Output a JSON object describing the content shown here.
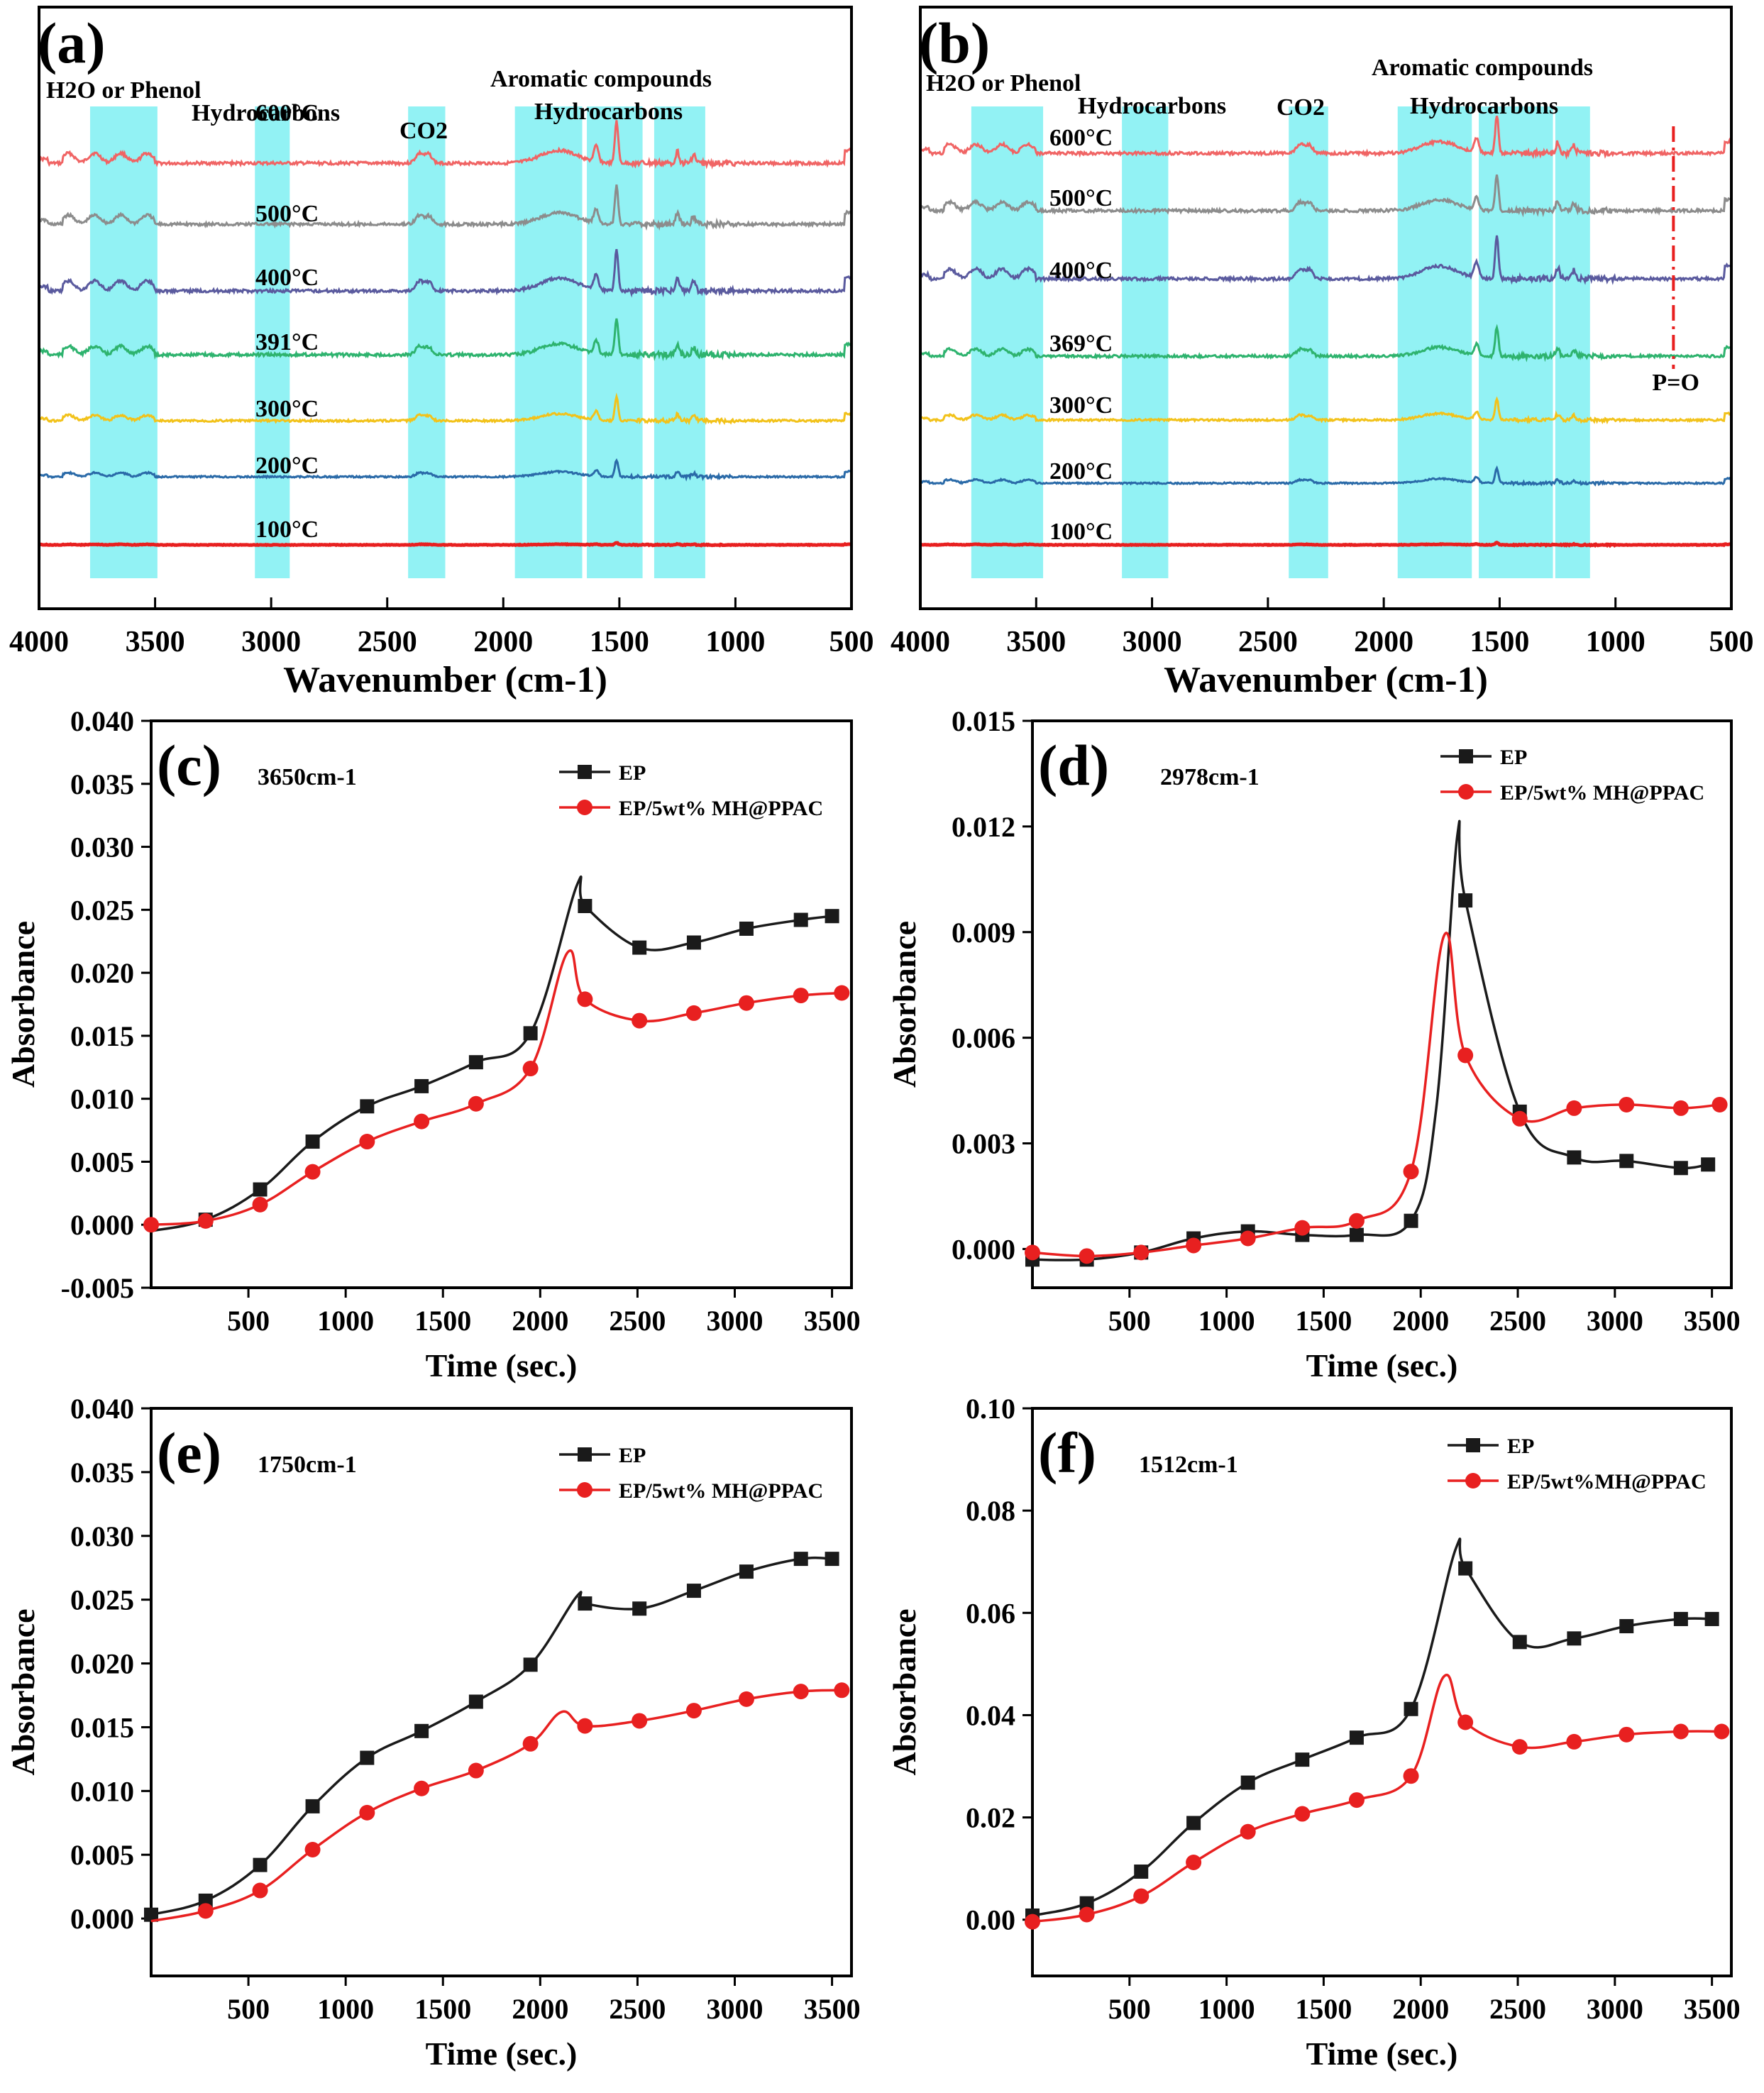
{
  "chart_data": [
    {
      "panel": "(a)",
      "type": "line",
      "subtype": "stacked-ftir-spectra",
      "xlabel": "Wavenumber (cm-1)",
      "xlim": [
        4000,
        500
      ],
      "xticks": [
        4000,
        3500,
        3000,
        2500,
        2000,
        1500,
        1000,
        500
      ],
      "bands": [
        {
          "label": "H2O or Phenol",
          "from": 3780,
          "to": 3490
        },
        {
          "label": "Hydrocarbons",
          "from": 3070,
          "to": 2920
        },
        {
          "label": "CO2",
          "from": 2410,
          "to": 2250
        },
        {
          "label": "Aromatic compounds",
          "from": 1950,
          "to": 1660
        },
        {
          "label": "Hydrocarbons",
          "from": 1640,
          "to": 1400
        },
        {
          "label": "",
          "from": 1350,
          "to": 1130
        }
      ],
      "band_texts": {
        "h2o": "H2O or Phenol",
        "hydro1": "Hydrocarbons",
        "co2": "CO2",
        "arom": "Aromatic compounds",
        "hydro2": "Hydrocarbons"
      },
      "series": [
        {
          "name": "600°C",
          "color": "#f06464",
          "peak": 1.0
        },
        {
          "name": "500°C",
          "color": "#8c8c8c",
          "peak": 0.9
        },
        {
          "name": "400°C",
          "color": "#5a5a9e",
          "peak": 1.0
        },
        {
          "name": "391°C",
          "color": "#2eb36e",
          "peak": 0.85
        },
        {
          "name": "300°C",
          "color": "#f2c21a",
          "peak": 0.55
        },
        {
          "name": "200°C",
          "color": "#2a6aa8",
          "peak": 0.4
        },
        {
          "name": "100°C",
          "color": "#e82020",
          "peak": 0.05
        }
      ]
    },
    {
      "panel": "(b)",
      "type": "line",
      "subtype": "stacked-ftir-spectra",
      "xlabel": "Wavenumber (cm-1)",
      "xlim": [
        4000,
        500
      ],
      "xticks": [
        4000,
        3500,
        3000,
        2500,
        2000,
        1500,
        1000,
        500
      ],
      "bands": [
        {
          "label": "H2O or Phenol",
          "from": 3780,
          "to": 3470
        },
        {
          "label": "Hydrocarbons",
          "from": 3130,
          "to": 2930
        },
        {
          "label": "CO2",
          "from": 2410,
          "to": 2240
        },
        {
          "label": "Aromatic compounds",
          "from": 1940,
          "to": 1620
        },
        {
          "label": "Hydrocarbons",
          "from": 1590,
          "to": 1270
        },
        {
          "label": "",
          "from": 1260,
          "to": 1110
        }
      ],
      "band_texts": {
        "h2o": "H2O or Phenol",
        "hydro1": "Hydrocarbons",
        "co2": "CO2",
        "arom": "Aromatic compounds",
        "hydro2": "Hydrocarbons"
      },
      "po_line": {
        "label": "P=O",
        "x": 750
      },
      "series": [
        {
          "name": "600°C",
          "color": "#f06464",
          "peak": 0.9
        },
        {
          "name": "500°C",
          "color": "#8c8c8c",
          "peak": 0.85
        },
        {
          "name": "400°C",
          "color": "#5a5a9e",
          "peak": 1.0
        },
        {
          "name": "369°C",
          "color": "#2eb36e",
          "peak": 0.7
        },
        {
          "name": "300°C",
          "color": "#f2c21a",
          "peak": 0.5
        },
        {
          "name": "200°C",
          "color": "#2a6aa8",
          "peak": 0.35
        },
        {
          "name": "100°C",
          "color": "#e82020",
          "peak": 0.05
        }
      ]
    },
    {
      "panel": "(c)",
      "type": "line",
      "annotation": "3650cm-1",
      "xlabel": "Time (sec.)",
      "ylabel": "Absorbance",
      "xlim": [
        0,
        3600
      ],
      "ylim": [
        -0.005,
        0.04
      ],
      "xticks": [
        500,
        1000,
        1500,
        2000,
        2500,
        3000,
        3500
      ],
      "yticks": [
        "-0.005",
        "0.000",
        "0.005",
        "0.010",
        "0.015",
        "0.020",
        "0.025",
        "0.030",
        "0.035",
        "0.040"
      ],
      "series": [
        {
          "name": "EP",
          "color": "#1a1a1a",
          "marker": "square",
          "x": [
            0,
            280,
            560,
            830,
            1110,
            1390,
            1670,
            1950,
            2190,
            2230,
            2510,
            2790,
            3060,
            3340,
            3500
          ],
          "y": [
            -0.0005,
            0.0004,
            0.0028,
            0.0066,
            0.0094,
            0.011,
            0.0129,
            0.0152,
            0.027,
            0.0253,
            0.022,
            0.0224,
            0.0235,
            0.0242,
            0.0245
          ],
          "markers": [
            1,
            2,
            3,
            4,
            5,
            6,
            7,
            9,
            10,
            11,
            12,
            13,
            14
          ]
        },
        {
          "name": "EP/5wt% MH@PPAC",
          "color": "#e82020",
          "marker": "circle",
          "x": [
            0,
            280,
            560,
            830,
            1110,
            1390,
            1670,
            1950,
            2140,
            2230,
            2510,
            2790,
            3060,
            3340,
            3550
          ],
          "y": [
            0.0,
            0.0003,
            0.0016,
            0.0042,
            0.0066,
            0.0082,
            0.0096,
            0.0124,
            0.0216,
            0.0179,
            0.0162,
            0.0168,
            0.0176,
            0.0182,
            0.0184
          ],
          "markers": [
            0,
            1,
            2,
            3,
            4,
            5,
            6,
            7,
            9,
            10,
            11,
            12,
            13,
            14
          ]
        }
      ]
    },
    {
      "panel": "(d)",
      "type": "line",
      "annotation": "2978cm-1",
      "xlabel": "Time (sec.)",
      "ylabel": "Absorbance",
      "xlim": [
        0,
        3600
      ],
      "ylim": [
        -0.0011,
        0.015
      ],
      "xticks": [
        500,
        1000,
        1500,
        2000,
        2500,
        3000,
        3500
      ],
      "yticks": [
        "0.000",
        "0.003",
        "0.006",
        "0.009",
        "0.012",
        "0.015"
      ],
      "series": [
        {
          "name": "EP",
          "color": "#1a1a1a",
          "marker": "square",
          "x": [
            0,
            280,
            560,
            830,
            1110,
            1390,
            1670,
            1950,
            2080,
            2190,
            2230,
            2510,
            2790,
            3060,
            3340,
            3480
          ],
          "y": [
            -0.0003,
            -0.0003,
            -0.0001,
            0.0003,
            0.0005,
            0.0004,
            0.0004,
            0.0008,
            0.004,
            0.0118,
            0.0099,
            0.0039,
            0.0026,
            0.0025,
            0.0023,
            0.0024
          ],
          "markers": [
            0,
            1,
            2,
            3,
            4,
            5,
            6,
            7,
            10,
            11,
            12,
            13,
            14,
            15
          ]
        },
        {
          "name": "EP/5wt% MH@PPAC",
          "color": "#e82020",
          "marker": "circle",
          "x": [
            0,
            280,
            560,
            830,
            1110,
            1390,
            1670,
            1950,
            2120,
            2230,
            2510,
            2790,
            3060,
            3340,
            3540
          ],
          "y": [
            -0.0001,
            -0.0002,
            -0.0001,
            0.0001,
            0.0003,
            0.0006,
            0.0008,
            0.0022,
            0.0089,
            0.0055,
            0.0037,
            0.004,
            0.0041,
            0.004,
            0.0041
          ],
          "markers": [
            0,
            1,
            2,
            3,
            4,
            5,
            6,
            7,
            9,
            10,
            11,
            12,
            13,
            14
          ]
        }
      ]
    },
    {
      "panel": "(e)",
      "type": "line",
      "annotation": "1750cm-1",
      "xlabel": "Time (sec.)",
      "ylabel": "Absorbance",
      "xlim": [
        0,
        3600
      ],
      "ylim": [
        -0.0045,
        0.04
      ],
      "xticks": [
        500,
        1000,
        1500,
        2000,
        2500,
        3000,
        3500
      ],
      "yticks": [
        "0.000",
        "0.005",
        "0.010",
        "0.015",
        "0.020",
        "0.025",
        "0.030",
        "0.035",
        "0.040"
      ],
      "series": [
        {
          "name": "EP",
          "color": "#1a1a1a",
          "marker": "square",
          "x": [
            0,
            280,
            560,
            830,
            1110,
            1390,
            1670,
            1950,
            2190,
            2230,
            2510,
            2790,
            3060,
            3340,
            3500
          ],
          "y": [
            0.0003,
            0.0014,
            0.0042,
            0.0088,
            0.0126,
            0.0147,
            0.017,
            0.0199,
            0.0253,
            0.0247,
            0.0243,
            0.0257,
            0.0272,
            0.0282,
            0.0282
          ],
          "markers": [
            0,
            1,
            2,
            3,
            4,
            5,
            6,
            7,
            9,
            10,
            11,
            12,
            13,
            14
          ]
        },
        {
          "name": "EP/5wt% MH@PPAC",
          "color": "#e82020",
          "marker": "circle",
          "x": [
            0,
            280,
            560,
            830,
            1110,
            1390,
            1670,
            1950,
            2110,
            2230,
            2510,
            2790,
            3060,
            3340,
            3550
          ],
          "y": [
            -0.0002,
            0.0006,
            0.0022,
            0.0054,
            0.0083,
            0.0102,
            0.0116,
            0.0137,
            0.0162,
            0.0151,
            0.0155,
            0.0163,
            0.0172,
            0.0178,
            0.0179
          ],
          "markers": [
            1,
            2,
            3,
            4,
            5,
            6,
            7,
            9,
            10,
            11,
            12,
            13,
            14
          ]
        }
      ]
    },
    {
      "panel": "(f)",
      "type": "line",
      "annotation": "1512cm-1",
      "xlabel": "Time (sec.)",
      "ylabel": "Absorbance",
      "xlim": [
        0,
        3600
      ],
      "ylim": [
        -0.011,
        0.1
      ],
      "xticks": [
        500,
        1000,
        1500,
        2000,
        2500,
        3000,
        3500
      ],
      "yticks": [
        "0.00",
        "0.02",
        "0.04",
        "0.06",
        "0.08",
        "0.10"
      ],
      "series": [
        {
          "name": "EP",
          "color": "#1a1a1a",
          "marker": "square",
          "x": [
            0,
            280,
            560,
            830,
            1110,
            1390,
            1670,
            1950,
            2180,
            2230,
            2510,
            2790,
            3060,
            3340,
            3500
          ],
          "y": [
            0.0008,
            0.0032,
            0.0094,
            0.0189,
            0.0268,
            0.0313,
            0.0356,
            0.0412,
            0.0725,
            0.0687,
            0.0543,
            0.055,
            0.0574,
            0.0588,
            0.0588
          ],
          "markers": [
            0,
            1,
            2,
            3,
            4,
            5,
            6,
            7,
            9,
            10,
            11,
            12,
            13,
            14
          ]
        },
        {
          "name": "EP/5wt%MH@PPAC",
          "color": "#e82020",
          "marker": "circle",
          "x": [
            0,
            280,
            560,
            830,
            1110,
            1390,
            1670,
            1950,
            2120,
            2230,
            2510,
            2790,
            3060,
            3340,
            3550
          ],
          "y": [
            -0.0004,
            0.001,
            0.0046,
            0.0112,
            0.0172,
            0.0207,
            0.0234,
            0.0281,
            0.0476,
            0.0386,
            0.0338,
            0.0348,
            0.0362,
            0.0368,
            0.0368
          ],
          "markers": [
            0,
            1,
            2,
            3,
            4,
            5,
            6,
            7,
            9,
            10,
            11,
            12,
            13,
            14
          ]
        }
      ]
    }
  ]
}
